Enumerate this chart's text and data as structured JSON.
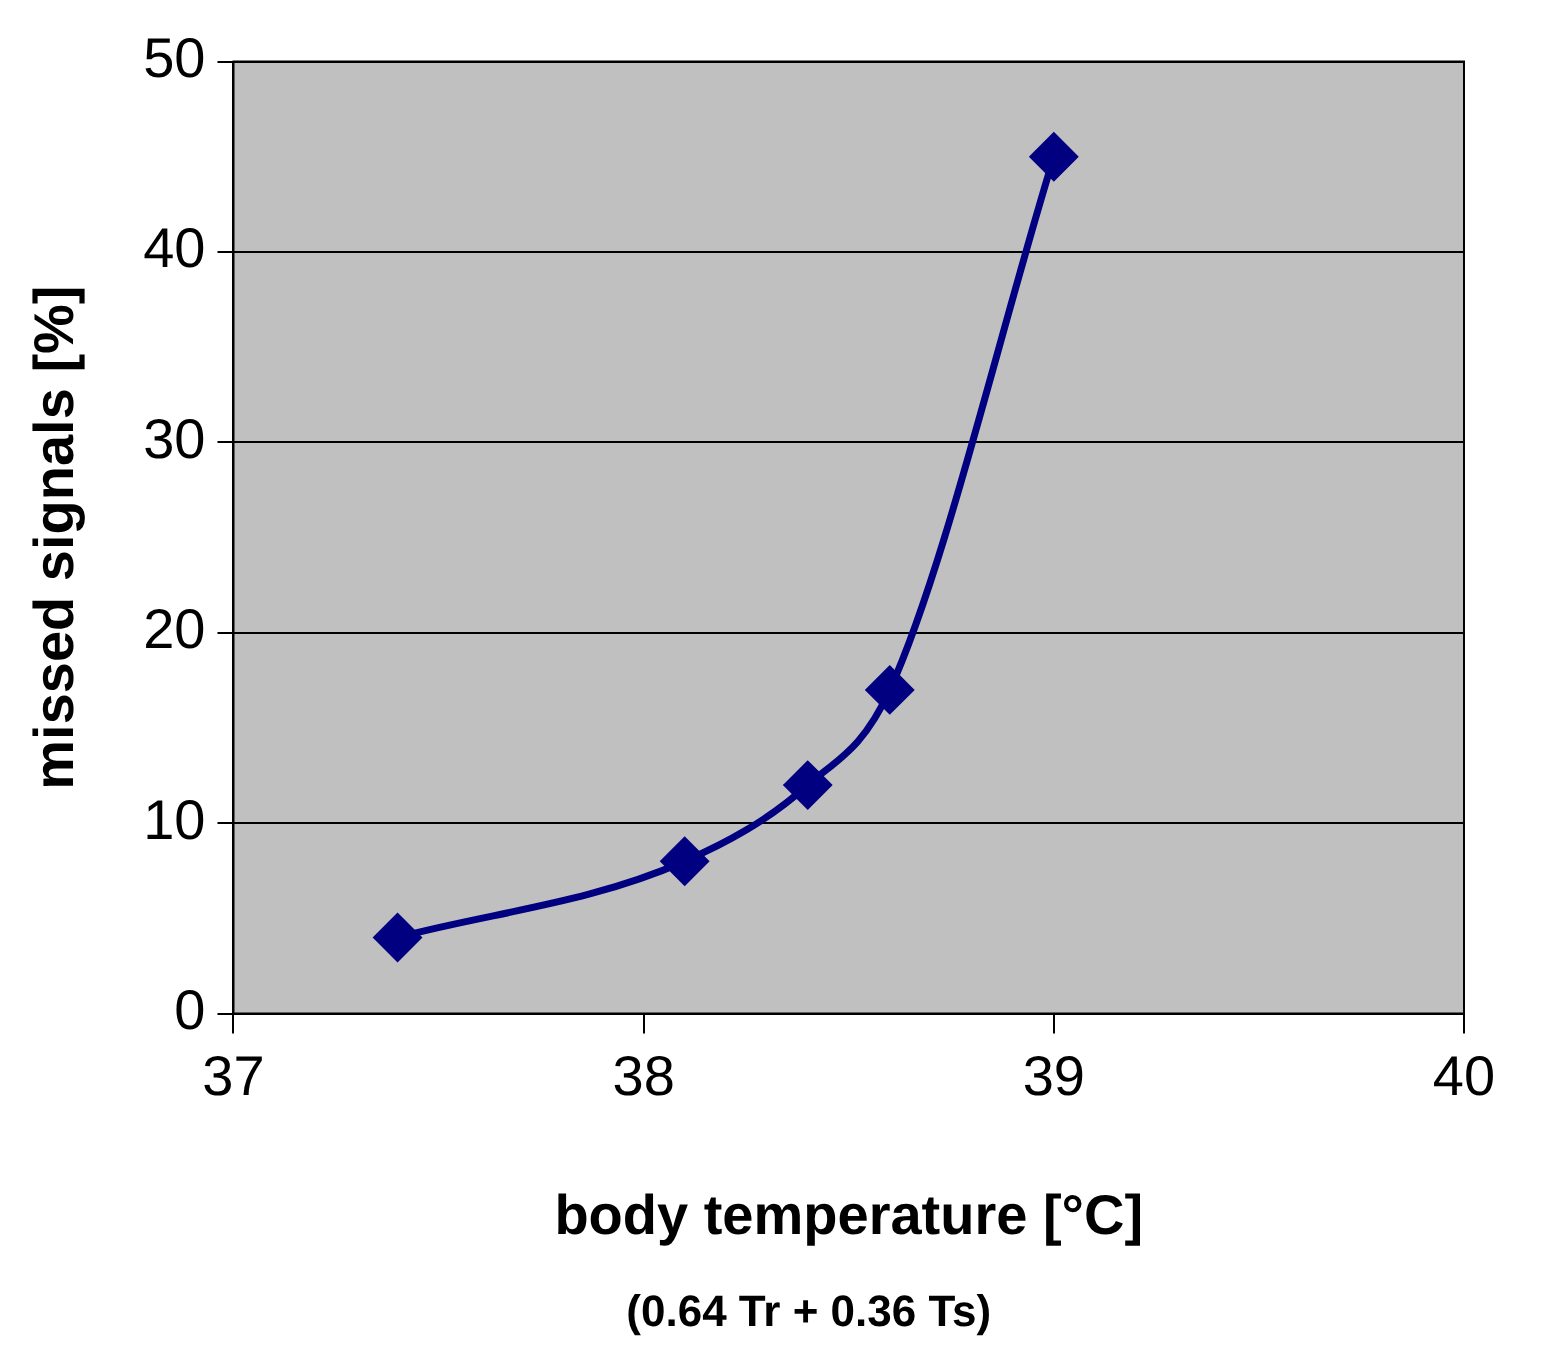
{
  "chart_data": {
    "type": "line",
    "xlabel": "body temperature [°C]",
    "ylabel": "missed signals [%]",
    "annotations": [
      "(0.64 Tr + 0.36 Ts)"
    ],
    "x": [
      37.4,
      38.1,
      38.4,
      38.6,
      39
    ],
    "series": [
      {
        "color": "#000080",
        "values": [
          4,
          8,
          12,
          17,
          45
        ]
      }
    ],
    "xlim": [
      37,
      40
    ],
    "xticks": [
      37,
      38,
      39,
      40
    ],
    "ylim": [
      0,
      50
    ],
    "yticks": [
      0,
      10,
      20,
      30,
      40,
      50
    ],
    "grid": "y",
    "legend": false,
    "marker": "diamond",
    "line_style": "solid"
  }
}
